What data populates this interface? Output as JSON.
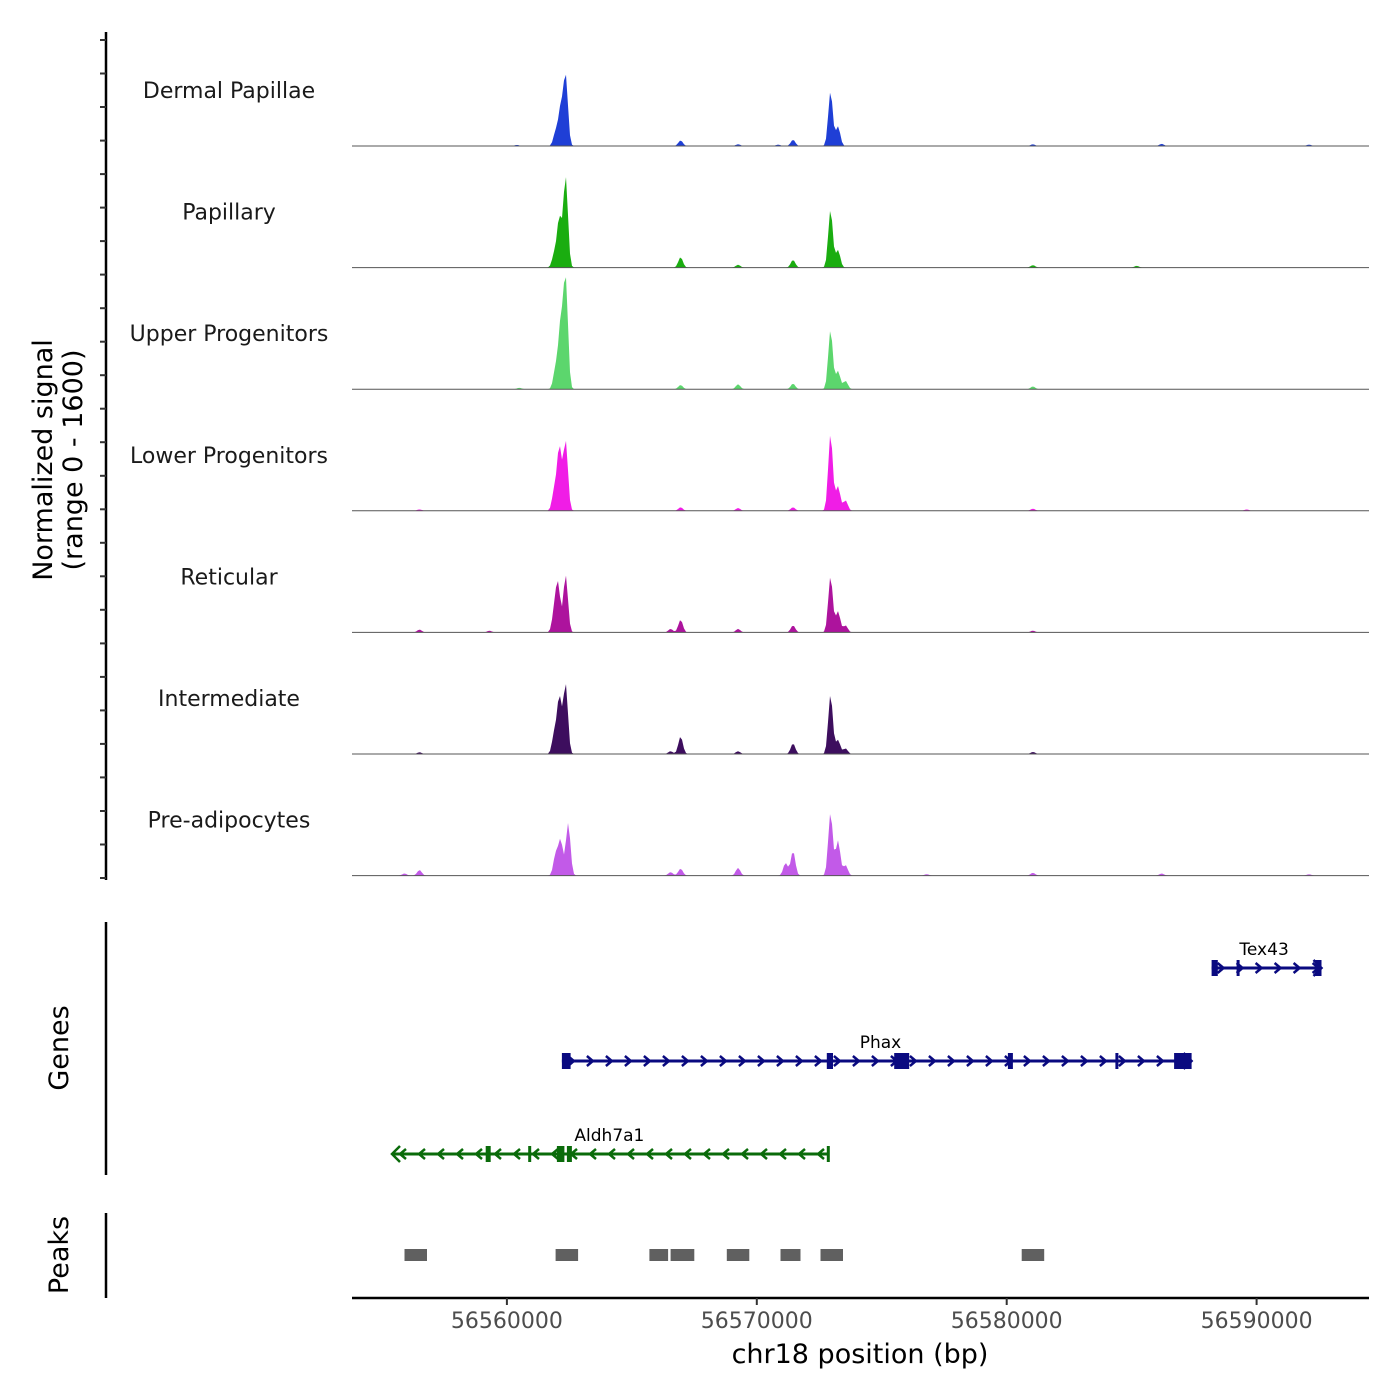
{
  "chart_data": {
    "type": "genome-track",
    "chromosome": "chr18",
    "xlabel": "chr18 position (bp)",
    "ylabel_line1": "Normalized signal",
    "ylabel_line2": "(range 0 - 1600)",
    "signal_range": [
      0,
      1600
    ],
    "x_range": [
      56553800,
      56594500
    ],
    "x_ticks": [
      {
        "value": 56560000,
        "label": "56560000"
      },
      {
        "value": 56570000,
        "label": "56570000"
      },
      {
        "value": 56580000,
        "label": "56580000"
      },
      {
        "value": 56590000,
        "label": "56590000"
      }
    ],
    "tracks": [
      {
        "name": "Dermal Papillae",
        "color": "#1f3fd6",
        "peaks": [
          [
            56562350,
            1000
          ],
          [
            56562150,
            520
          ],
          [
            56561950,
            200
          ],
          [
            56566950,
            80
          ],
          [
            56571450,
            90
          ],
          [
            56572950,
            780
          ],
          [
            56573250,
            280
          ],
          [
            56570850,
            20
          ],
          [
            56569250,
            25
          ],
          [
            56581050,
            25
          ],
          [
            56586200,
            30
          ],
          [
            56592100,
            20
          ],
          [
            56560400,
            15
          ]
        ]
      },
      {
        "name": "Papillary",
        "color": "#1aad10",
        "peaks": [
          [
            56562350,
            1300
          ],
          [
            56562100,
            700
          ],
          [
            56561900,
            200
          ],
          [
            56566950,
            150
          ],
          [
            56571450,
            110
          ],
          [
            56572950,
            830
          ],
          [
            56573250,
            250
          ],
          [
            56569250,
            40
          ],
          [
            56581050,
            35
          ],
          [
            56585200,
            25
          ]
        ]
      },
      {
        "name": "Upper Progenitors",
        "color": "#5cd66d",
        "peaks": [
          [
            56562350,
            1600
          ],
          [
            56562150,
            900
          ],
          [
            56561950,
            300
          ],
          [
            56566950,
            60
          ],
          [
            56569250,
            70
          ],
          [
            56571450,
            80
          ],
          [
            56572950,
            850
          ],
          [
            56573250,
            260
          ],
          [
            56573550,
            120
          ],
          [
            56581050,
            40
          ],
          [
            56560500,
            20
          ]
        ]
      },
      {
        "name": "Lower Progenitors",
        "color": "#f01de6",
        "peaks": [
          [
            56562350,
            1000
          ],
          [
            56562100,
            900
          ],
          [
            56561900,
            300
          ],
          [
            56566950,
            50
          ],
          [
            56569250,
            40
          ],
          [
            56571450,
            50
          ],
          [
            56572950,
            1100
          ],
          [
            56573250,
            350
          ],
          [
            56573550,
            150
          ],
          [
            56556500,
            20
          ],
          [
            56581050,
            30
          ],
          [
            56589600,
            20
          ]
        ]
      },
      {
        "name": "Reticular",
        "color": "#ad139d",
        "peaks": [
          [
            56562350,
            820
          ],
          [
            56562050,
            650
          ],
          [
            56561900,
            300
          ],
          [
            56566950,
            180
          ],
          [
            56566550,
            50
          ],
          [
            56569250,
            50
          ],
          [
            56571450,
            100
          ],
          [
            56572950,
            800
          ],
          [
            56573250,
            300
          ],
          [
            56573550,
            100
          ],
          [
            56556500,
            40
          ],
          [
            56559300,
            25
          ],
          [
            56581050,
            25
          ]
        ]
      },
      {
        "name": "Intermediate",
        "color": "#3d0e5e",
        "peaks": [
          [
            56562350,
            1000
          ],
          [
            56562100,
            800
          ],
          [
            56561900,
            300
          ],
          [
            56566950,
            250
          ],
          [
            56566550,
            40
          ],
          [
            56569250,
            40
          ],
          [
            56571450,
            150
          ],
          [
            56572950,
            850
          ],
          [
            56573250,
            200
          ],
          [
            56573550,
            80
          ],
          [
            56556500,
            25
          ],
          [
            56581050,
            30
          ]
        ]
      },
      {
        "name": "Pre-adipocytes",
        "color": "#c25ae8",
        "peaks": [
          [
            56562450,
            750
          ],
          [
            56562150,
            500
          ],
          [
            56561950,
            300
          ],
          [
            56566950,
            100
          ],
          [
            56566550,
            50
          ],
          [
            56569250,
            110
          ],
          [
            56571450,
            350
          ],
          [
            56571150,
            180
          ],
          [
            56572950,
            900
          ],
          [
            56573250,
            500
          ],
          [
            56573550,
            150
          ],
          [
            56556500,
            80
          ],
          [
            56555900,
            30
          ],
          [
            56581050,
            40
          ],
          [
            56586200,
            30
          ],
          [
            56592100,
            20
          ],
          [
            56576800,
            20
          ]
        ]
      }
    ],
    "genes_title": "Genes",
    "genes": [
      {
        "name": "Tex43",
        "color": "#0a0a80",
        "strand": "+",
        "start": 56588200,
        "end": 56592600,
        "exons": [
          [
            56588200,
            56588450
          ],
          [
            56589200,
            56589300
          ],
          [
            56592350,
            56592600
          ]
        ]
      },
      {
        "name": "Phax",
        "color": "#0a0a80",
        "strand": "+",
        "start": 56562200,
        "end": 56587400,
        "exons": [
          [
            56562200,
            56562550
          ],
          [
            56572800,
            56573050
          ],
          [
            56575500,
            56576100
          ],
          [
            56580050,
            56580250
          ],
          [
            56584350,
            56584450
          ],
          [
            56586700,
            56587400
          ]
        ]
      },
      {
        "name": "Aldh7a1",
        "color": "#0a6b0a",
        "strand": "-",
        "start": 56555400,
        "end": 56572900,
        "exons": [
          [
            56559150,
            56559350
          ],
          [
            56560850,
            56560950
          ],
          [
            56562000,
            56562300
          ],
          [
            56562400,
            56562600
          ],
          [
            56572800,
            56572900
          ]
        ]
      }
    ],
    "peaks_title": "Peaks",
    "peak_color": "#606060",
    "peak_regions": [
      [
        56555900,
        56556800
      ],
      [
        56561950,
        56562850
      ],
      [
        56565700,
        56566450
      ],
      [
        56566550,
        56567500
      ],
      [
        56568800,
        56569700
      ],
      [
        56570950,
        56571750
      ],
      [
        56572550,
        56573450
      ],
      [
        56580600,
        56581500
      ]
    ]
  }
}
